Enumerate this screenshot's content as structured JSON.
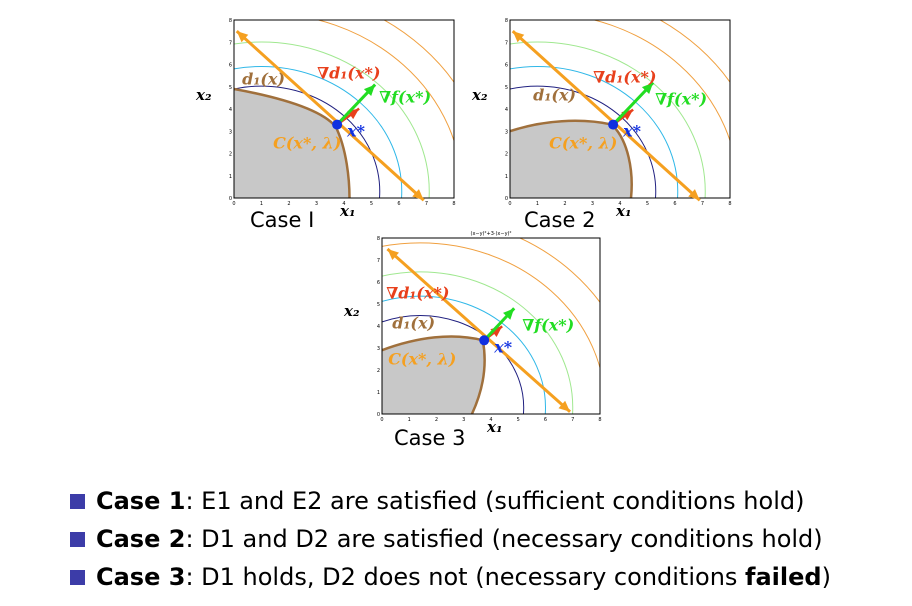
{
  "panels": [
    {
      "caption": "Case I",
      "labels": {
        "x2": "x₂",
        "x1": "x₁",
        "d1": "d₁(x)",
        "grad_d1": "∇d₁(x*)",
        "grad_f": "∇f(x*)",
        "xstar": "x*",
        "C": "C(x*, λ)"
      }
    },
    {
      "caption": "Case 2",
      "labels": {
        "x2": "x₂",
        "x1": "x₁",
        "d1": "d₁(x)",
        "grad_d1": "∇d₁(x*)",
        "grad_f": "∇f(x*)",
        "xstar": "x*",
        "C": "C(x*, λ)"
      }
    },
    {
      "caption": "Case 3",
      "title": "(x−y)²+3·(x−y)²",
      "labels": {
        "x2": "x₂",
        "x1": "x₁",
        "d1": "d₁(x)",
        "grad_d1": "∇d₁(x*)",
        "grad_f": "∇f(x*)",
        "xstar": "x*",
        "C": "C(x*, λ)"
      }
    }
  ],
  "axis_ticks": {
    "x": [
      "0",
      "1",
      "2",
      "3",
      "4",
      "5",
      "6",
      "7",
      "8"
    ],
    "y": [
      "0",
      "1",
      "2",
      "3",
      "4",
      "5",
      "6",
      "7",
      "8"
    ]
  },
  "colors": {
    "region": "#c8c8c8",
    "boundary": "#a0703c",
    "tangent": "#f5a020",
    "grad_d1": "#e8401c",
    "grad_f": "#22dd22",
    "point": "#1030e0",
    "contour_orange": "#f0a040",
    "contour_lightgreen": "#a0e890",
    "contour_cyan": "#30b8e8",
    "contour_navy": "#202080",
    "bullet": "#3c3ca8"
  },
  "bullets": [
    {
      "case": "Case 1",
      "text": ": E1 and E2 are satisfied (sufficient conditions hold)",
      "emph": "",
      "tail": ""
    },
    {
      "case": "Case 2",
      "text": ": D1 and D2 are satisfied (necessary conditions hold)",
      "emph": "",
      "tail": ""
    },
    {
      "case": "Case 3",
      "text": ": D1 holds, D2 does not (necessary conditions ",
      "emph": "failed",
      "tail": ")"
    }
  ]
}
